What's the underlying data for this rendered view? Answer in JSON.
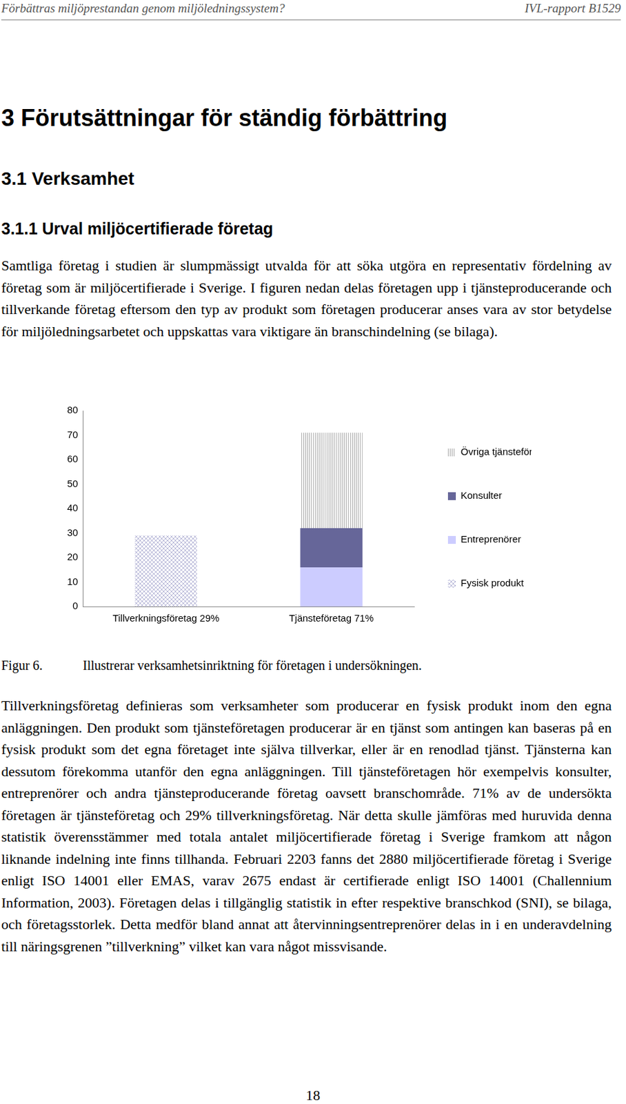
{
  "header": {
    "left": "Förbättras miljöprestandan genom miljöledningssystem?",
    "right": "IVL-rapport B1529"
  },
  "headings": [
    "3  Förutsättningar för ständig förbättring",
    "3.1  Verksamhet",
    "3.1.1  Urval miljöcertifierade företag"
  ],
  "paragraphs_before": [
    "Samtliga företag i studien är slumpmässigt utvalda för att söka utgöra en representativ fördelning av företag som är miljöcertifierade i Sverige. I figuren nedan delas företagen upp i tjänsteproducerande och tillverkande företag eftersom den typ av produkt som företagen producerar anses vara av stor betydelse för miljöledningsarbetet och uppskattas vara viktigare än branschindelning (se bilaga)."
  ],
  "chart_data": {
    "type": "bar",
    "stacked": true,
    "grid": false,
    "legend": "right",
    "categories": [
      "Tillverkningsföretag 29%",
      "Tjänsteföretag 71%"
    ],
    "series": [
      {
        "name": "Fysisk produkt",
        "color": "#b8b8d8",
        "values": [
          29,
          0
        ]
      },
      {
        "name": "Entreprenörer",
        "color": "#ccccff",
        "values": [
          0,
          16
        ]
      },
      {
        "name": "Konsulter",
        "color": "#666699",
        "values": [
          0,
          16
        ]
      },
      {
        "name": "Övriga tjänsteföretag",
        "color": "#b0b0b0",
        "values": [
          0,
          39
        ]
      }
    ],
    "ylim": [
      0,
      80
    ],
    "yticks": [
      0,
      10,
      20,
      30,
      40,
      50,
      60,
      70,
      80
    ]
  },
  "caption": {
    "label": "Figur 6.",
    "text": "Illustrerar verksamhetsinriktning för företagen i undersökningen."
  },
  "paragraphs_after": [
    "Tillverkningsföretag definieras som verksamheter som producerar en fysisk produkt inom den egna anläggningen. Den produkt som tjänsteföretagen producerar är en tjänst som antingen kan baseras på en fysisk produkt som det egna företaget inte själva tillverkar, eller är en renodlad tjänst. Tjänsterna kan dessutom förekomma utanför den egna anläggningen. Till tjänsteföretagen hör exempelvis konsulter, entreprenörer och andra tjänsteproducerande företag oavsett branschområde. 71% av de undersökta företagen är tjänsteföretag och 29% tillverkningsföretag. När detta skulle jämföras med huruvida denna statistik överensstämmer med totala antalet miljöcertifierade företag i Sverige framkom att någon liknande indelning inte finns tillhanda. Februari 2203 fanns det 2880 miljöcertifierade företag i Sverige enligt ISO 14001 eller EMAS, varav 2675 endast är certifierade enligt ISO 14001 (Challennium Information, 2003). Företagen delas i tillgänglig statistik in efter respektive branschkod (SNI), se bilaga, och företagsstorlek. Detta medför bland annat att återvinningsentreprenörer delas in i en underavdelning till näringsgrenen ”tillverkning” vilket kan vara något missvisande."
  ],
  "page_number": "18"
}
